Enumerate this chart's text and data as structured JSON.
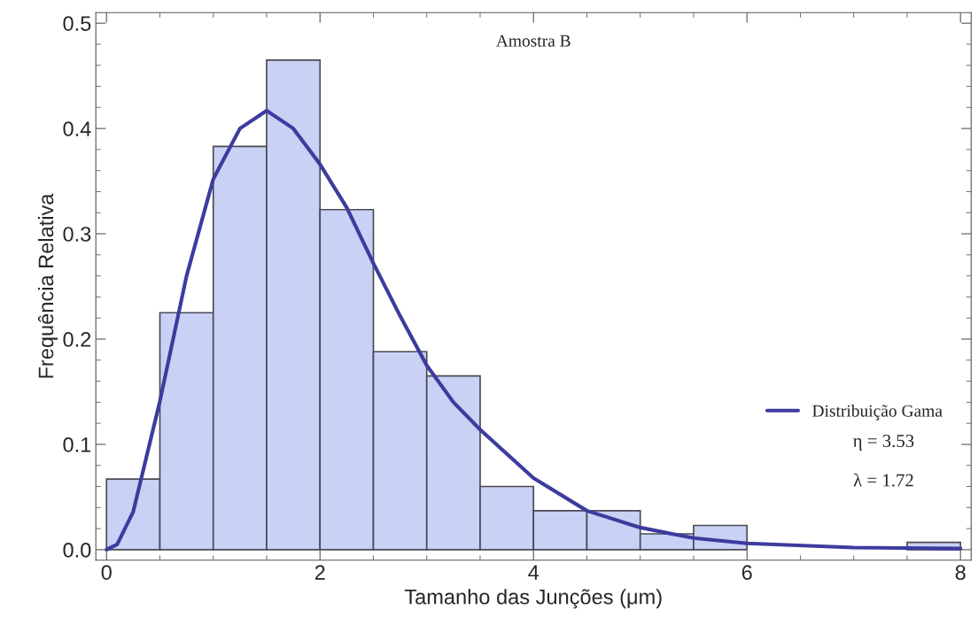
{
  "chart_data": {
    "type": "histogram",
    "title": "Amostra B",
    "xlabel": "Tamanho das Junções (μm)",
    "ylabel": "Frequência Relativa",
    "bins": [
      0,
      0.5,
      1,
      1.5,
      2,
      2.5,
      3,
      3.5,
      4,
      4.5,
      5,
      5.5,
      6,
      6.5,
      7,
      7.5,
      8
    ],
    "values": [
      0.067,
      0.225,
      0.383,
      0.465,
      0.323,
      0.188,
      0.165,
      0.06,
      0.037,
      0.037,
      0.015,
      0.023,
      null,
      null,
      null,
      0.007
    ],
    "color": "#c9d1f4",
    "series": [
      {
        "type": "line",
        "name": "Distribuição Gama",
        "color": "#3c3c9e",
        "x": [
          0,
          0.1,
          0.25,
          0.5,
          0.75,
          1,
          1.25,
          1.5,
          1.75,
          2,
          2.25,
          2.5,
          2.75,
          3,
          3.25,
          3.5,
          4,
          4.5,
          5,
          5.5,
          6,
          7,
          8
        ],
        "values": [
          0,
          0.005,
          0.036,
          0.141,
          0.26,
          0.352,
          0.4,
          0.417,
          0.4,
          0.366,
          0.325,
          0.272,
          0.222,
          0.175,
          0.14,
          0.114,
          0.068,
          0.037,
          0.021,
          0.011,
          0.006,
          0.002,
          0.001
        ]
      }
    ],
    "annotations": [
      "η = 3.53",
      "λ = 1.72"
    ],
    "xlim": [
      -0.1,
      8.1
    ],
    "ylim": [
      -0.01,
      0.51
    ],
    "xticks": [
      0,
      2,
      4,
      6,
      8
    ],
    "yticks": [
      {
        "value": 0,
        "label": "0.0"
      },
      0.1,
      0.2,
      0.3,
      0.4,
      0.5
    ],
    "grid": false,
    "legend": "right"
  }
}
